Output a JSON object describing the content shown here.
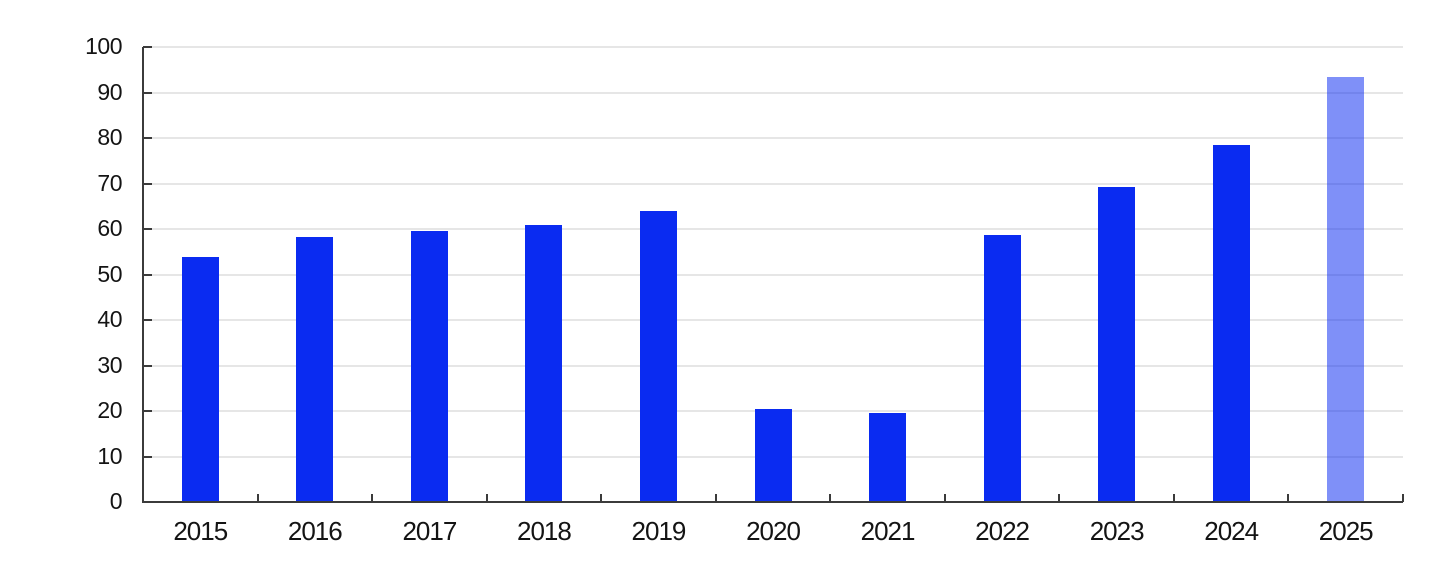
{
  "chart_data": {
    "type": "bar",
    "title": "",
    "xlabel": "",
    "ylabel": "",
    "categories": [
      "2015",
      "2016",
      "2017",
      "2018",
      "2019",
      "2020",
      "2021",
      "2022",
      "2023",
      "2024",
      "2025"
    ],
    "values": [
      53.8,
      58.2,
      59.5,
      60.8,
      63.9,
      20.5,
      19.6,
      58.7,
      69.2,
      78.5,
      93.5
    ],
    "highlighted_category": "2025",
    "highlight_style": "translucent",
    "ylim": [
      0,
      100
    ],
    "ytick_step": 10,
    "ytick_labels": [
      "0",
      "10",
      "20",
      "30",
      "40",
      "50",
      "60",
      "70",
      "80",
      "90",
      "100"
    ],
    "grid": "horizontal",
    "legend": "none",
    "colors": {
      "bar": "#0a2bf1",
      "bar_highlight": "#8494f8",
      "gridline": "#e6e6e6",
      "axis": "#3b3b3b",
      "tick": "#3b3b3b",
      "label": "#141414",
      "background": "#ffffff"
    }
  }
}
